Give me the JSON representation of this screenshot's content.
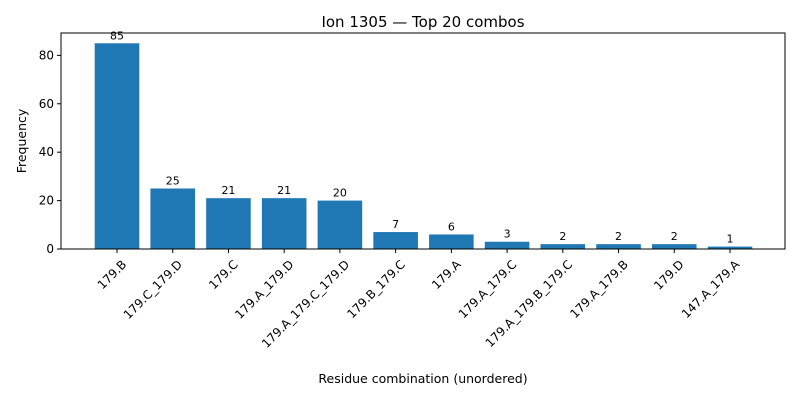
{
  "chart_data": {
    "type": "bar",
    "title": "Ion 1305 — Top 20 combos",
    "xlabel": "Residue combination (unordered)",
    "ylabel": "Frequency",
    "categories": [
      "179.B",
      "179.C_179.D",
      "179.C",
      "179.A_179.D",
      "179.A_179.C_179.D",
      "179.B_179.C",
      "179.A",
      "179.A_179.C",
      "179.A_179.B_179.C",
      "179.A_179.B",
      "179.D",
      "147.A_179.A"
    ],
    "values": [
      85,
      25,
      21,
      21,
      20,
      7,
      6,
      3,
      2,
      2,
      2,
      1
    ],
    "data_labels": [
      "85",
      "25",
      "21",
      "21",
      "20",
      "7",
      "6",
      "3",
      "2",
      "2",
      "2",
      "1"
    ],
    "yticks": [
      0,
      20,
      40,
      60,
      80
    ],
    "ylim": [
      0,
      89.25
    ],
    "bar_color": "#1f77b4",
    "grid": false,
    "legend": "none"
  }
}
